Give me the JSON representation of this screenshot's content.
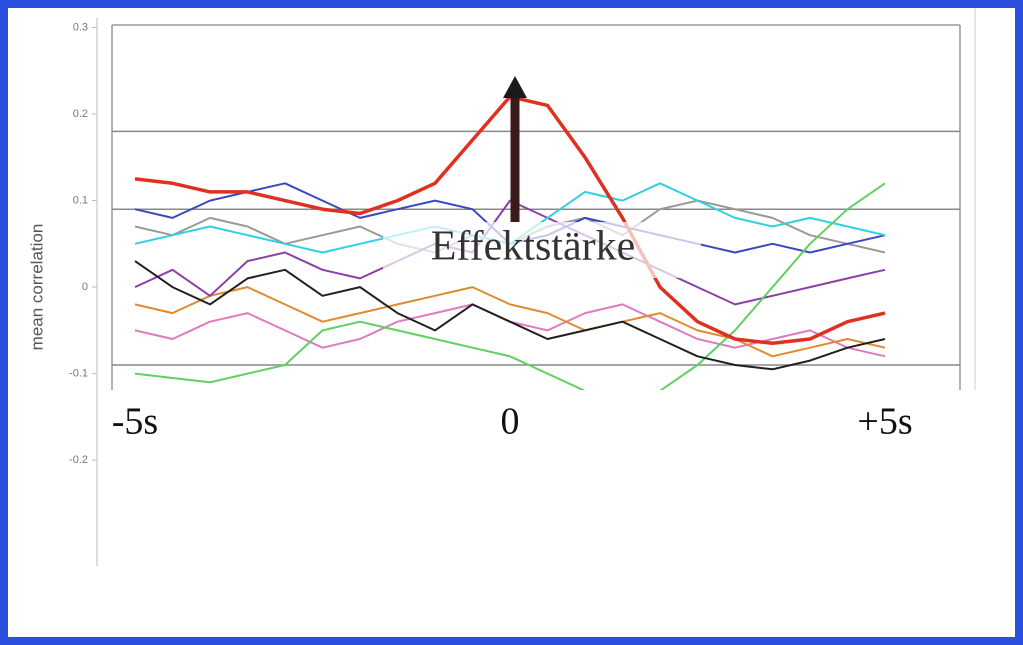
{
  "chart_data": {
    "type": "line",
    "y_label": "mean correlation",
    "annotation": "Effektstärke",
    "ylim": [
      -0.32,
      0.3
    ],
    "yticks": [
      0.3,
      0.2,
      0.1,
      0,
      -0.1,
      -0.2
    ],
    "xticks": [
      {
        "value": -5,
        "label": "-5s"
      },
      0,
      {
        "value": 5,
        "label": "+5s"
      }
    ],
    "reference_lines": [
      0.18,
      0.09,
      -0.09
    ],
    "x": [
      -5,
      -4.5,
      -4,
      -3.5,
      -3,
      -2.5,
      -2,
      -1.5,
      -1,
      -0.5,
      0,
      0.5,
      1,
      1.5,
      2,
      2.5,
      3,
      3.5,
      4,
      4.5,
      5
    ],
    "series": [
      {
        "color": "#9a9a9a",
        "values": [
          0.07,
          0.06,
          0.08,
          0.07,
          0.05,
          0.06,
          0.07,
          0.05,
          0.04,
          0.06,
          0.05,
          0.07,
          0.08,
          0.06,
          0.09,
          0.1,
          0.09,
          0.08,
          0.06,
          0.05,
          0.04
        ]
      },
      {
        "color": "#e07ac0",
        "values": [
          -0.05,
          -0.06,
          -0.04,
          -0.03,
          -0.05,
          -0.07,
          -0.06,
          -0.04,
          -0.03,
          -0.02,
          -0.04,
          -0.05,
          -0.03,
          -0.02,
          -0.04,
          -0.06,
          -0.07,
          -0.06,
          -0.05,
          -0.07,
          -0.08
        ]
      },
      {
        "color": "#e08a30",
        "values": [
          -0.02,
          -0.03,
          -0.01,
          0.0,
          -0.02,
          -0.04,
          -0.03,
          -0.02,
          -0.01,
          0.0,
          -0.02,
          -0.03,
          -0.05,
          -0.04,
          -0.03,
          -0.05,
          -0.06,
          -0.08,
          -0.07,
          -0.06,
          -0.07
        ]
      },
      {
        "color": "#8a40a8",
        "values": [
          0.0,
          0.02,
          -0.01,
          0.03,
          0.04,
          0.02,
          0.01,
          0.03,
          0.05,
          0.04,
          0.1,
          0.08,
          0.06,
          0.04,
          0.02,
          0.0,
          -0.02,
          -0.01,
          0.0,
          0.01,
          0.02
        ]
      },
      {
        "color": "#3848c0",
        "values": [
          0.09,
          0.08,
          0.1,
          0.11,
          0.12,
          0.1,
          0.08,
          0.09,
          0.1,
          0.09,
          0.05,
          0.06,
          0.08,
          0.07,
          0.06,
          0.05,
          0.04,
          0.05,
          0.04,
          0.05,
          0.06
        ]
      },
      {
        "color": "#30d0e0",
        "values": [
          0.05,
          0.06,
          0.07,
          0.06,
          0.05,
          0.04,
          0.05,
          0.06,
          0.07,
          0.06,
          0.05,
          0.08,
          0.11,
          0.1,
          0.12,
          0.1,
          0.08,
          0.07,
          0.08,
          0.07,
          0.06
        ]
      },
      {
        "color": "#60d060",
        "values": [
          -0.1,
          -0.105,
          -0.11,
          -0.1,
          -0.09,
          -0.05,
          -0.04,
          -0.05,
          -0.06,
          -0.07,
          -0.08,
          -0.1,
          -0.12,
          -0.14,
          -0.12,
          -0.09,
          -0.05,
          0.0,
          0.05,
          0.09,
          0.12
        ]
      },
      {
        "color": "#202020",
        "values": [
          0.03,
          0.0,
          -0.02,
          0.01,
          0.02,
          -0.01,
          0.0,
          -0.03,
          -0.05,
          -0.02,
          -0.04,
          -0.06,
          -0.05,
          -0.04,
          -0.06,
          -0.08,
          -0.09,
          -0.095,
          -0.085,
          -0.07,
          -0.06
        ]
      },
      {
        "color": "#e03020",
        "values": [
          0.125,
          0.12,
          0.11,
          0.11,
          0.1,
          0.09,
          0.085,
          0.1,
          0.12,
          0.17,
          0.22,
          0.21,
          0.15,
          0.08,
          0.0,
          -0.04,
          -0.06,
          -0.065,
          -0.06,
          -0.04,
          -0.03
        ]
      }
    ]
  }
}
